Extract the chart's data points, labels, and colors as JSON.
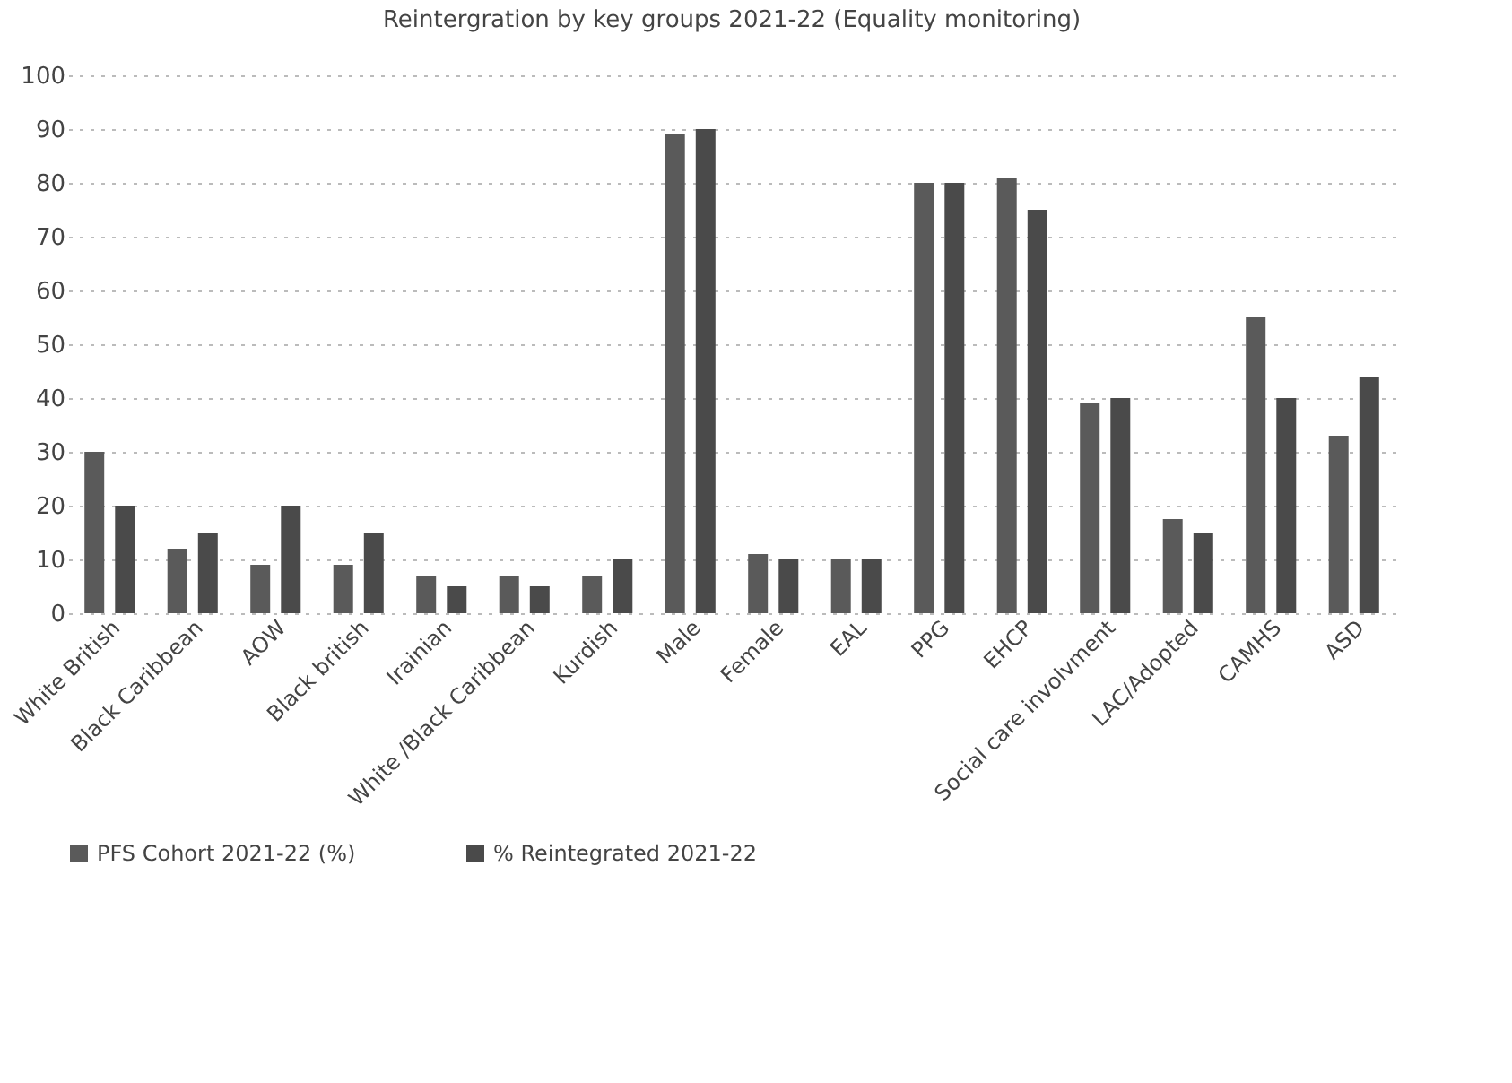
{
  "chart_data": {
    "type": "bar",
    "title": "Reintergration by key groups 2021-22 (Equality monitoring)",
    "categories": [
      "White British",
      "Black Caribbean",
      "AOW",
      "Black british",
      "Irainian",
      "White /Black Caribbean",
      "Kurdish",
      "Male",
      "Female",
      "EAL",
      "PPG",
      "EHCP",
      "Social care involvment",
      "LAC/Adopted",
      "CAMHS",
      "ASD"
    ],
    "series": [
      {
        "name": "PFS Cohort 2021-22 (%)",
        "color": "#5a5a5a",
        "values": [
          30,
          12,
          9,
          9,
          7,
          7,
          7,
          89,
          11,
          10,
          80,
          81,
          39,
          17.5,
          55,
          33
        ]
      },
      {
        "name": "% Reintegrated 2021-22",
        "color": "#4a4a4a",
        "values": [
          20,
          15,
          20,
          15,
          5,
          5,
          10,
          90,
          10,
          10,
          80,
          75,
          40,
          15,
          40,
          44
        ]
      }
    ],
    "ylim": [
      0,
      100
    ],
    "yticks": [
      0,
      10,
      20,
      30,
      40,
      50,
      60,
      70,
      80,
      90,
      100
    ],
    "grid": "y",
    "legend": "bottom"
  }
}
